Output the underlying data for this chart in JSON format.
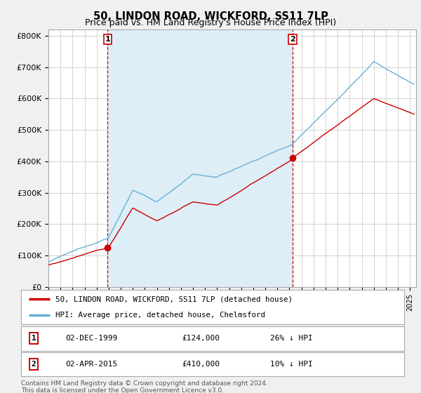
{
  "title": "50, LINDON ROAD, WICKFORD, SS11 7LP",
  "subtitle": "Price paid vs. HM Land Registry's House Price Index (HPI)",
  "title_fontsize": 10.5,
  "subtitle_fontsize": 9,
  "yticks": [
    0,
    100000,
    200000,
    300000,
    400000,
    500000,
    600000,
    700000,
    800000
  ],
  "ytick_labels": [
    "£0",
    "£100K",
    "£200K",
    "£300K",
    "£400K",
    "£500K",
    "£600K",
    "£700K",
    "£800K"
  ],
  "ylim": [
    0,
    820000
  ],
  "xlim_start": 1995.0,
  "xlim_end": 2025.5,
  "hpi_color": "#6ab0d4",
  "price_color": "#cc0000",
  "vline_color": "#cc0000",
  "shade_color": "#ddeef7",
  "transaction1_x": 1999.92,
  "transaction1_y": 124000,
  "transaction2_x": 2015.25,
  "transaction2_y": 410000,
  "marker_color": "#cc0000",
  "marker_size": 6,
  "legend_label_price": "50, LINDON ROAD, WICKFORD, SS11 7LP (detached house)",
  "legend_label_hpi": "HPI: Average price, detached house, Chelmsford",
  "footer": "Contains HM Land Registry data © Crown copyright and database right 2024.\nThis data is licensed under the Open Government Licence v3.0.",
  "background_color": "#f0f0f0",
  "plot_bg_color": "#ffffff",
  "grid_color": "#cccccc"
}
